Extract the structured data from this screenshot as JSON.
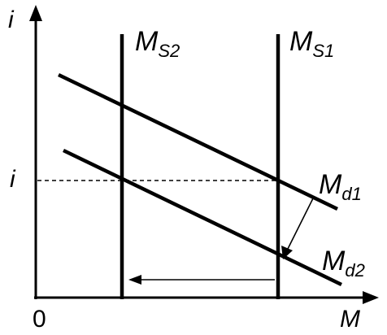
{
  "diagram": {
    "axes": {
      "y_label": "i",
      "x_label": "M",
      "origin_label": "0",
      "y_tick_label": "i"
    },
    "curves": {
      "ms2": {
        "main": "M",
        "sub": "S2"
      },
      "ms1": {
        "main": "M",
        "sub": "S1"
      },
      "md1": {
        "main": "M",
        "sub": "d1"
      },
      "md2": {
        "main": "M",
        "sub": "d2"
      }
    },
    "colors": {
      "ink": "#000000"
    }
  }
}
